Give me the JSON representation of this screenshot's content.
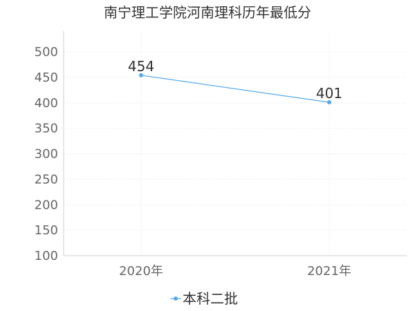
{
  "chart_data": {
    "type": "line",
    "title": "南宁理工学院河南理科历年最低分",
    "categories": [
      "2020年",
      "2021年"
    ],
    "series": [
      {
        "name": "本科二批",
        "values": [
          454,
          401
        ],
        "color": "#55a8f0"
      }
    ],
    "ylim": [
      100,
      500
    ],
    "yticks": [
      100,
      150,
      200,
      250,
      300,
      350,
      400,
      450,
      500
    ],
    "data_labels": [
      "454",
      "401"
    ],
    "grid": true,
    "legend_position": "bottom"
  }
}
